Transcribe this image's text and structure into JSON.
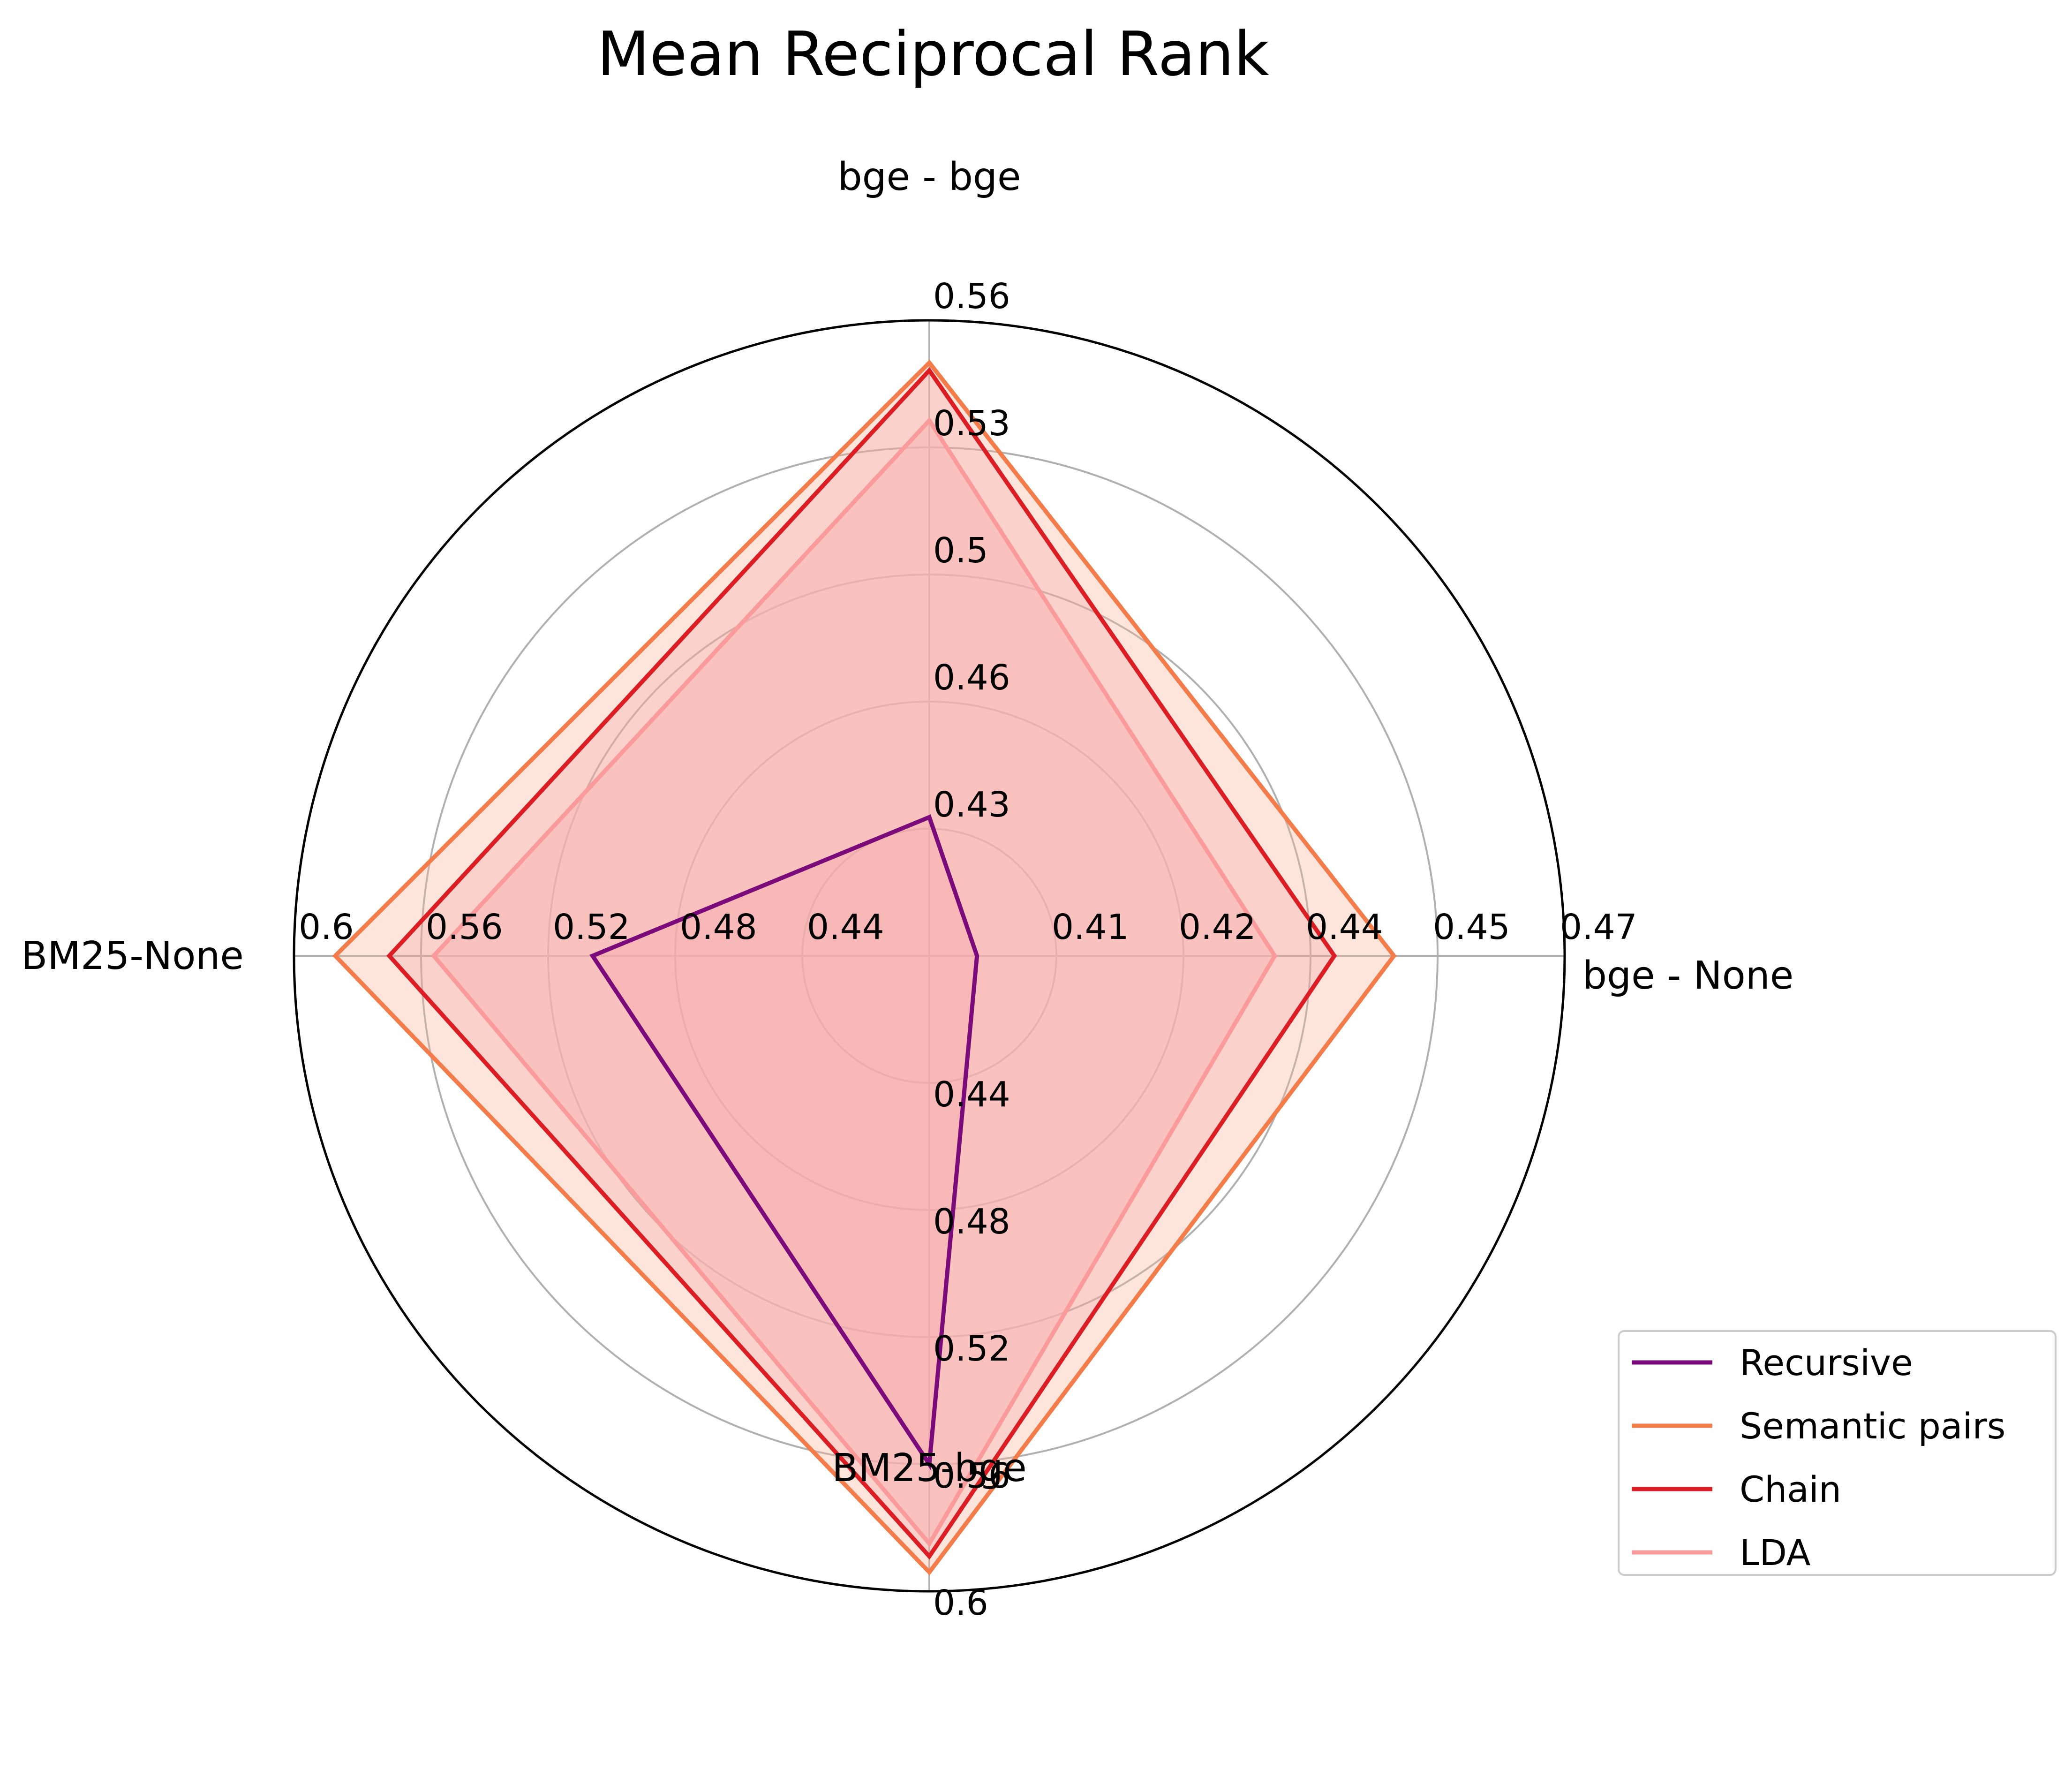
{
  "chart_data": {
    "type": "radar",
    "title": "Mean Reciprocal Rank",
    "axes": [
      {
        "name": "bge - bge",
        "ticks": [
          "0.43",
          "0.46",
          "0.5",
          "0.53",
          "0.56"
        ],
        "range": [
          0.395,
          0.56
        ]
      },
      {
        "name": "bge - None",
        "ticks": [
          "0.41",
          "0.42",
          "0.44",
          "0.45",
          "0.47"
        ],
        "range": [
          0.39,
          0.47
        ]
      },
      {
        "name": "BM25-bge",
        "ticks": [
          "0.44",
          "0.48",
          "0.52",
          "0.56",
          "0.6"
        ],
        "range": [
          0.4,
          0.6
        ]
      },
      {
        "name": "BM25-None",
        "ticks": [
          "0.44",
          "0.48",
          "0.52",
          "0.56",
          "0.6"
        ],
        "range": [
          0.4,
          0.6
        ]
      }
    ],
    "series": [
      {
        "name": "Recursive",
        "color": "#7b0a7b",
        "fill": "#e66a8a",
        "fill_opacity": 0.3,
        "values": [
          0.431,
          0.396,
          0.56,
          0.506
        ]
      },
      {
        "name": "Semantic pairs",
        "color": "#f47c4a",
        "fill": "#fbb49a",
        "fill_opacity": 0.35,
        "values": [
          0.549,
          0.4485,
          0.594,
          0.587
        ]
      },
      {
        "name": "Chain",
        "color": "#dc1e24",
        "fill": "#f2a0a0",
        "fill_opacity": 0.28,
        "values": [
          0.547,
          0.441,
          0.589,
          0.57
        ]
      },
      {
        "name": "LDA",
        "color": "#fa9a9a",
        "fill": "#f7b4b4",
        "fill_opacity": 0.55,
        "values": [
          0.534,
          0.4335,
          0.585,
          0.556
        ]
      }
    ],
    "grid": true,
    "legend_position": "bottom-right"
  }
}
